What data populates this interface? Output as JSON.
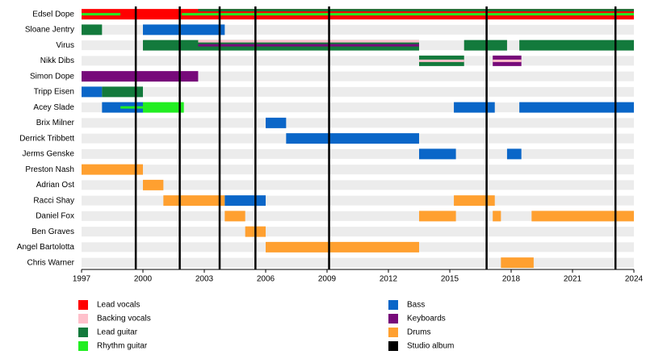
{
  "chart_data": {
    "type": "timeline",
    "xlim": [
      1997,
      2024
    ],
    "xticks": [
      1997,
      2000,
      2003,
      2006,
      2009,
      2012,
      2015,
      2018,
      2021,
      2024
    ],
    "series": [
      {
        "name": "Lead vocals",
        "color": "#ff0000"
      },
      {
        "name": "Backing vocals",
        "color": "#ffc0cb"
      },
      {
        "name": "Lead guitar",
        "color": "#137a3c"
      },
      {
        "name": "Rhythm guitar",
        "color": "#22ee22"
      },
      {
        "name": "Bass",
        "color": "#0a66c8"
      },
      {
        "name": "Keyboards",
        "color": "#770a7a"
      },
      {
        "name": "Drums",
        "color": "#ffa030"
      }
    ],
    "albums": {
      "name": "Studio album",
      "color": "#000000",
      "values": [
        1999.65,
        2001.8,
        2003.75,
        2005.5,
        2009.1,
        2016.8,
        2023.1
      ]
    },
    "members": [
      {
        "name": "Edsel Dope",
        "bars": [
          {
            "role": "Lead vocals",
            "start": 1997,
            "end": 2024
          },
          {
            "role": "Rhythm guitar",
            "start": 1997,
            "end": 1998.9
          },
          {
            "role": "Rhythm guitar",
            "start": 2001.9,
            "end": 2024
          },
          {
            "role": "Lead guitar",
            "start": 2002.7,
            "end": 2024
          }
        ]
      },
      {
        "name": "Sloane Jentry",
        "bars": [
          {
            "role": "Lead guitar",
            "start": 1997,
            "end": 1998
          },
          {
            "role": "Bass",
            "start": 2000,
            "end": 2004
          }
        ]
      },
      {
        "name": "Virus",
        "bars": [
          {
            "role": "Lead guitar",
            "start": 2000,
            "end": 2013.5
          },
          {
            "role": "Keyboards",
            "start": 2002.7,
            "end": 2013.5
          },
          {
            "role": "Backing vocals",
            "start": 2002.7,
            "end": 2013.5
          },
          {
            "role": "Lead guitar",
            "start": 2015.7,
            "end": 2017.8
          },
          {
            "role": "Lead guitar",
            "start": 2018.4,
            "end": 2024
          }
        ]
      },
      {
        "name": "Nikk Dibs",
        "bars": [
          {
            "role": "Lead guitar",
            "start": 2013.5,
            "end": 2015.7
          },
          {
            "role": "Backing vocals",
            "start": 2013.5,
            "end": 2015.7
          },
          {
            "role": "Keyboards",
            "start": 2017.1,
            "end": 2018.5
          },
          {
            "role": "Backing vocals",
            "start": 2017.1,
            "end": 2018.5
          }
        ]
      },
      {
        "name": "Simon Dope",
        "bars": [
          {
            "role": "Keyboards",
            "start": 1997,
            "end": 2002.7
          }
        ]
      },
      {
        "name": "Tripp Eisen",
        "bars": [
          {
            "role": "Bass",
            "start": 1997,
            "end": 1998
          },
          {
            "role": "Lead guitar",
            "start": 1998,
            "end": 2000
          }
        ]
      },
      {
        "name": "Acey Slade",
        "bars": [
          {
            "role": "Bass",
            "start": 1998,
            "end": 2000
          },
          {
            "role": "Rhythm guitar",
            "start": 1998.9,
            "end": 2000
          },
          {
            "role": "Rhythm guitar",
            "start": 2000,
            "end": 2002
          },
          {
            "role": "Bass",
            "start": 2015.2,
            "end": 2017.2
          },
          {
            "role": "Bass",
            "start": 2018.4,
            "end": 2024
          }
        ]
      },
      {
        "name": "Brix Milner",
        "bars": [
          {
            "role": "Bass",
            "start": 2006,
            "end": 2007
          }
        ]
      },
      {
        "name": "Derrick Tribbett",
        "bars": [
          {
            "role": "Bass",
            "start": 2007,
            "end": 2013.5
          }
        ]
      },
      {
        "name": "Jerms Genske",
        "bars": [
          {
            "role": "Bass",
            "start": 2013.5,
            "end": 2015.3
          },
          {
            "role": "Bass",
            "start": 2017.8,
            "end": 2018.5
          }
        ]
      },
      {
        "name": "Preston Nash",
        "bars": [
          {
            "role": "Drums",
            "start": 1997,
            "end": 2000
          }
        ]
      },
      {
        "name": "Adrian Ost",
        "bars": [
          {
            "role": "Drums",
            "start": 2000,
            "end": 2001
          }
        ]
      },
      {
        "name": "Racci Shay",
        "bars": [
          {
            "role": "Drums",
            "start": 2001,
            "end": 2004
          },
          {
            "role": "Bass",
            "start": 2004,
            "end": 2006
          },
          {
            "role": "Drums",
            "start": 2015.2,
            "end": 2017.2
          }
        ]
      },
      {
        "name": "Daniel Fox",
        "bars": [
          {
            "role": "Drums",
            "start": 2004,
            "end": 2005
          },
          {
            "role": "Drums",
            "start": 2013.5,
            "end": 2015.3
          },
          {
            "role": "Drums",
            "start": 2017.1,
            "end": 2017.5
          },
          {
            "role": "Drums",
            "start": 2019,
            "end": 2024
          }
        ]
      },
      {
        "name": "Ben Graves",
        "bars": [
          {
            "role": "Drums",
            "start": 2005,
            "end": 2006
          }
        ]
      },
      {
        "name": "Angel Bartolotta",
        "bars": [
          {
            "role": "Drums",
            "start": 2006,
            "end": 2013.5
          }
        ]
      },
      {
        "name": "Chris Warner",
        "bars": [
          {
            "role": "Drums",
            "start": 2017.5,
            "end": 2019.1
          }
        ]
      }
    ]
  }
}
